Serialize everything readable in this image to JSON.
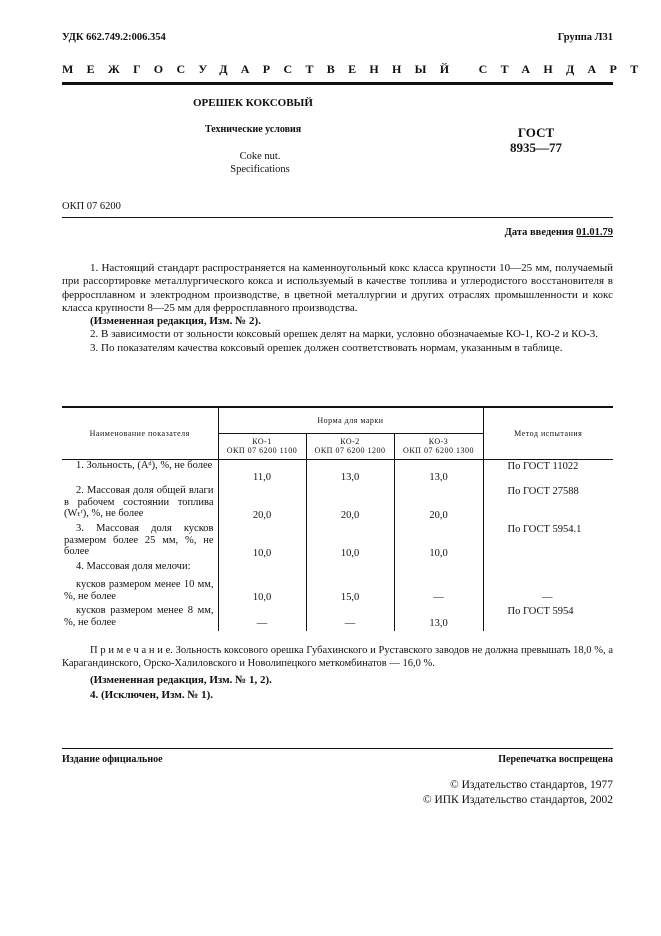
{
  "header": {
    "udk": "УДК 662.749.2:006.354",
    "group": "Группа Л31",
    "banner": "МЕЖГОСУДАРСТВЕННЫЙ СТАНДАРТ"
  },
  "title": {
    "main": "ОРЕШЕК КОКСОВЫЙ",
    "subtitle": "Технические условия",
    "en1": "Coke nut.",
    "en2": "Specifications",
    "gost1": "ГОСТ",
    "gost2": "8935—77"
  },
  "okp": "ОКП 07 6200",
  "date": {
    "label": "Дата введения",
    "value": "01.01.79"
  },
  "paragraphs": {
    "p1": "1. Настоящий стандарт распространяется на каменноугольный кокс класса крупности 10—25 мм, получаемый при рассортировке металлургического кокса и используемый в качестве топлива и углеродистого восстановителя в ферросплавном и электродном производстве, в цветной металлургии и других отраслях промышленности и кокс класса крупности 8—25 мм для ферросплавного производства.",
    "p1_note": "(Измененная редакция, Изм. № 2).",
    "p2": "2. В зависимости от зольности коксовый орешек делят на марки, условно обозначаемые КО-1, КО-2 и КО-3.",
    "p3": "3. По показателям качества коксовый орешек должен соответствовать нормам, указанным в таблице."
  },
  "table": {
    "h_name": "Наименование показателя",
    "h_norm": "Норма для марки",
    "h_method": "Метод испытания",
    "grades": [
      {
        "name": "КО-1",
        "okp": "ОКП 07 6200 1100"
      },
      {
        "name": "КО-2",
        "okp": "ОКП 07 6200 1200"
      },
      {
        "name": "КО-3",
        "okp": "ОКП 07 6200 1300"
      }
    ],
    "rows": [
      {
        "name": "1. Зольность, (Aᵈ), %, не более",
        "v": [
          "11,0",
          "13,0",
          "13,0"
        ],
        "method": "По ГОСТ 11022"
      },
      {
        "name": "2. Массовая доля общей влаги в рабочем состоянии топлива (Wₜʳ), %, не более",
        "v": [
          "20,0",
          "20,0",
          "20,0"
        ],
        "method": "По ГОСТ 27588"
      },
      {
        "name": "3. Массовая доля кусков размером более 25 мм, %, не более",
        "v": [
          "10,0",
          "10,0",
          "10,0"
        ],
        "method": "По ГОСТ 5954.1"
      },
      {
        "name": "4. Массовая доля мелочи:",
        "v": [
          "",
          "",
          ""
        ],
        "method": ""
      },
      {
        "name": "кусков размером менее 10 мм, %, не более",
        "v": [
          "10,0",
          "15,0",
          "—"
        ],
        "method": "—"
      },
      {
        "name": "кусков размером менее 8 мм, %, не более",
        "v": [
          "—",
          "—",
          "13,0"
        ],
        "method": "По ГОСТ 5954"
      }
    ]
  },
  "note": "П р и м е ч а н и е. Зольность коксового орешка Губахинского и Руставского заводов не должна превышать 18,0 %, а Карагандинского, Орско-Халиловского и Новолипецкого меткомбинатов — 16,0 %.",
  "note_edit": "(Измененная редакция, Изм. № 1, 2).",
  "p4": "4. (Исключен, Изм. № 1).",
  "footer": {
    "left": "Издание официальное",
    "right": "Перепечатка воспрещена",
    "c1": "© Издательство стандартов, 1977",
    "c2": "© ИПК Издательство стандартов, 2002"
  }
}
